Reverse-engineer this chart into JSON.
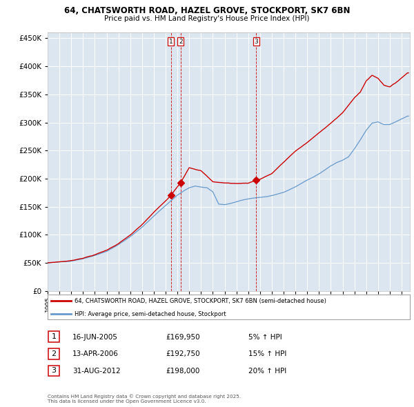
{
  "title1": "64, CHATSWORTH ROAD, HAZEL GROVE, STOCKPORT, SK7 6BN",
  "title2": "Price paid vs. HM Land Registry's House Price Index (HPI)",
  "legend_red": "64, CHATSWORTH ROAD, HAZEL GROVE, STOCKPORT, SK7 6BN (semi-detached house)",
  "legend_blue": "HPI: Average price, semi-detached house, Stockport",
  "footer": "Contains HM Land Registry data © Crown copyright and database right 2025.\nThis data is licensed under the Open Government Licence v3.0.",
  "sales": [
    {
      "num": 1,
      "date": "16-JUN-2005",
      "year": 2005.46,
      "price": 169950,
      "pct": "5%",
      "dir": "↑"
    },
    {
      "num": 2,
      "date": "13-APR-2006",
      "year": 2006.28,
      "price": 192750,
      "pct": "15%",
      "dir": "↑"
    },
    {
      "num": 3,
      "date": "31-AUG-2012",
      "year": 2012.67,
      "price": 198000,
      "pct": "20%",
      "dir": "↑"
    }
  ],
  "ylim": [
    0,
    460000
  ],
  "xlim_start": 1995.0,
  "xlim_end": 2025.7,
  "background_plot": "#dce6f1",
  "background_fig": "#ffffff",
  "grid_color": "#ffffff",
  "red_color": "#cc0000",
  "blue_color": "#6699cc",
  "vline_color": "#cc0000",
  "yticks": [
    0,
    50000,
    100000,
    150000,
    200000,
    250000,
    300000,
    350000,
    400000,
    450000
  ]
}
